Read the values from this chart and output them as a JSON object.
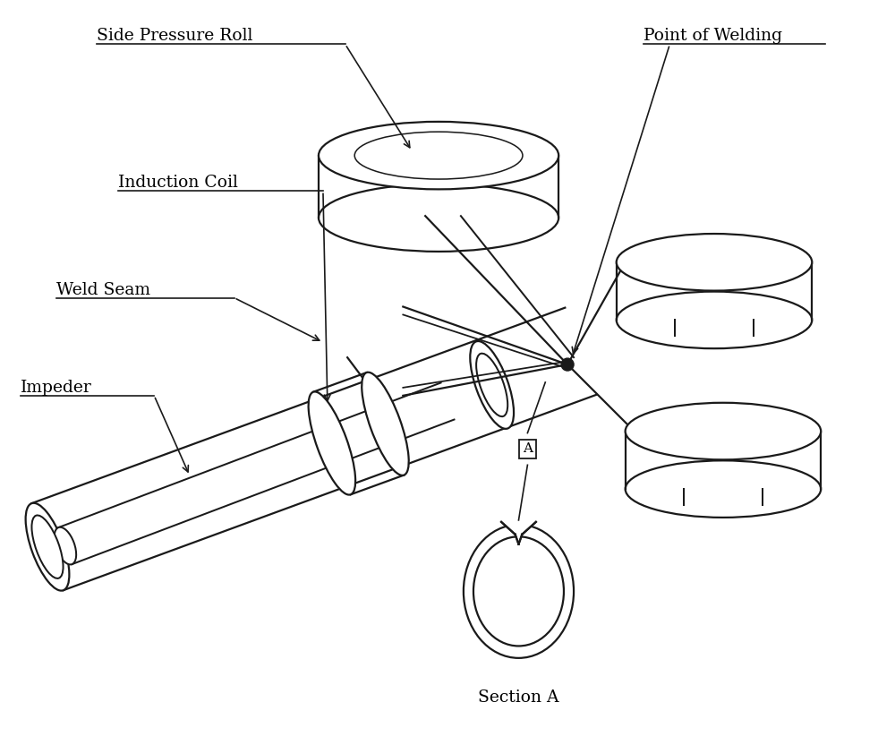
{
  "background_color": "#ffffff",
  "line_color": "#1a1a1a",
  "labels": {
    "side_pressure_roll": "Side Pressure Roll",
    "point_of_welding": "Point of Welding",
    "induction_coil": "Induction Coil",
    "weld_seam": "Weld Seam",
    "impeder": "Impeder",
    "section_a": "Section A",
    "label_a": "A"
  },
  "figsize": [
    10.0,
    8.32
  ],
  "dpi": 100
}
